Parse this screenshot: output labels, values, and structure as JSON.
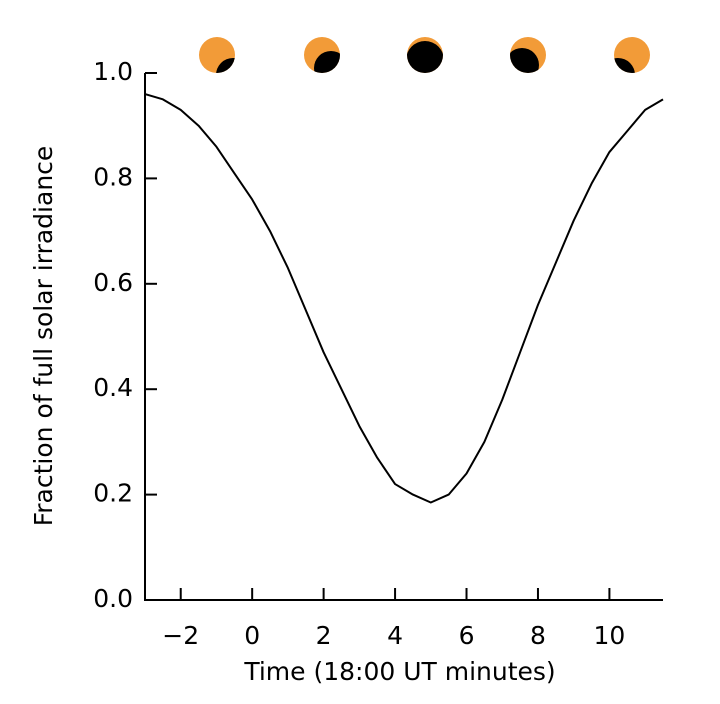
{
  "chart_data": {
    "type": "line",
    "x_label": "Time (18:00 UT minutes)",
    "y_label": "Fraction of full solar irradiance",
    "xlim": [
      -3,
      11.5
    ],
    "ylim": [
      0,
      1
    ],
    "xticks": [
      {
        "value": -2,
        "label": "−2"
      },
      0,
      2,
      4,
      6,
      8,
      10
    ],
    "yticks": [
      {
        "value": 0,
        "label": "0.0"
      },
      {
        "value": 0.2,
        "label": "0.2"
      },
      {
        "value": 0.4,
        "label": "0.4"
      },
      {
        "value": 0.6,
        "label": "0.6"
      },
      {
        "value": 0.8,
        "label": "0.8"
      },
      {
        "value": 1,
        "label": "1.0"
      }
    ],
    "grid": false,
    "series": [
      {
        "color": "#000000",
        "x": [
          -3,
          -2.5,
          -2,
          -1.5,
          -1,
          -0.5,
          0,
          0.5,
          1,
          1.5,
          2,
          2.5,
          3,
          3.5,
          4,
          4.5,
          5,
          5.5,
          6,
          6.5,
          7,
          7.5,
          8,
          8.5,
          9,
          9.5,
          10,
          10.5,
          11,
          11.5
        ],
        "values": [
          0.96,
          0.95,
          0.93,
          0.9,
          0.86,
          0.81,
          0.76,
          0.7,
          0.63,
          0.55,
          0.47,
          0.4,
          0.33,
          0.27,
          0.22,
          0.2,
          0.185,
          0.2,
          0.24,
          0.3,
          0.38,
          0.47,
          0.56,
          0.64,
          0.72,
          0.79,
          0.85,
          0.89,
          0.93,
          0.95
        ]
      }
    ]
  }
}
